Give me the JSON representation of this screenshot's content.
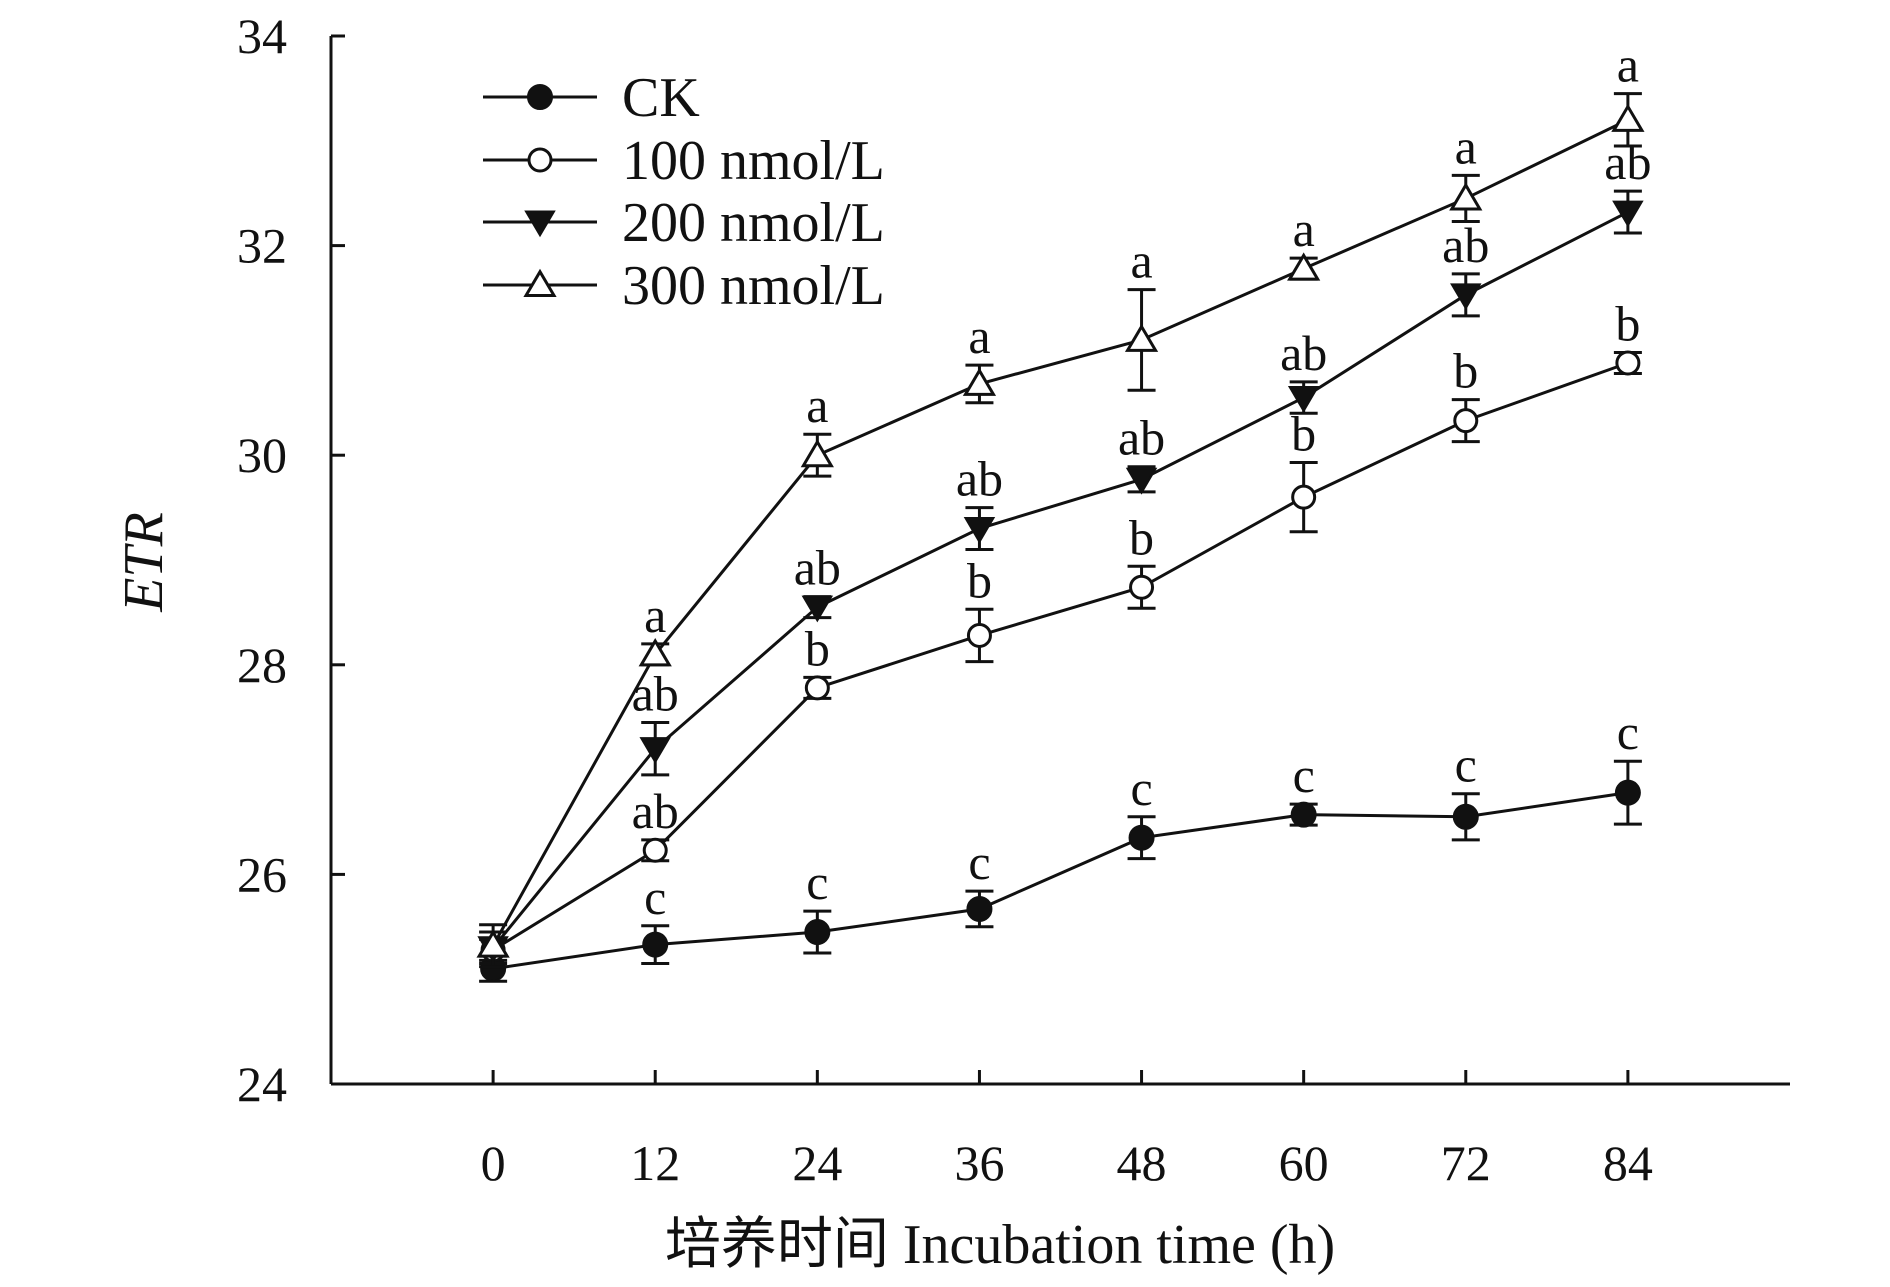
{
  "chart_data": {
    "type": "line",
    "title": "",
    "xlabel": "培养时间 Incubation time (h)",
    "ylabel": "ETR",
    "x": [
      0,
      12,
      24,
      36,
      48,
      60,
      72,
      84
    ],
    "xticks": [
      "0",
      "12",
      "24",
      "36",
      "48",
      "60",
      "72",
      "84"
    ],
    "xlim": [
      -12,
      96
    ],
    "ylim": [
      24,
      34
    ],
    "yticks": [
      "24",
      "26",
      "28",
      "30",
      "32",
      "34"
    ],
    "grid": false,
    "legend_position": "top-left",
    "series": [
      {
        "name": "CK",
        "marker": "filled-circle",
        "values": [
          25.1,
          25.33,
          25.45,
          25.67,
          26.35,
          26.57,
          26.55,
          26.78
        ],
        "errors": [
          0.12,
          0.18,
          0.2,
          0.17,
          0.2,
          0.1,
          0.22,
          0.3
        ],
        "letters": [
          "",
          "c",
          "c",
          "c",
          "c",
          "c",
          "c",
          "c"
        ]
      },
      {
        "name": "100 nmol/L",
        "marker": "open-circle",
        "values": [
          25.28,
          26.23,
          27.78,
          28.28,
          28.74,
          29.6,
          30.33,
          30.88
        ],
        "errors": [
          0.1,
          0.1,
          0.1,
          0.25,
          0.2,
          0.33,
          0.2,
          0.1
        ],
        "letters": [
          "",
          "ab",
          "b",
          "b",
          "b",
          "b",
          "b",
          "b"
        ]
      },
      {
        "name": "200 nmol/L",
        "marker": "filled-triangle-down",
        "values": [
          25.3,
          27.2,
          28.55,
          29.3,
          29.77,
          30.55,
          31.53,
          32.32
        ],
        "errors": [
          0.15,
          0.25,
          0.1,
          0.2,
          0.12,
          0.15,
          0.2,
          0.2
        ],
        "letters": [
          "",
          "ab",
          "ab",
          "ab",
          "ab",
          "ab",
          "ab",
          "ab"
        ]
      },
      {
        "name": "300 nmol/L",
        "marker": "open-triangle-up",
        "values": [
          25.32,
          28.1,
          30.0,
          30.68,
          31.1,
          31.78,
          32.45,
          33.2
        ],
        "errors": [
          0.2,
          0.1,
          0.2,
          0.18,
          0.48,
          0.1,
          0.22,
          0.25
        ],
        "letters": [
          "",
          "a",
          "a",
          "a",
          "a",
          "a",
          "a",
          "a"
        ]
      }
    ]
  }
}
